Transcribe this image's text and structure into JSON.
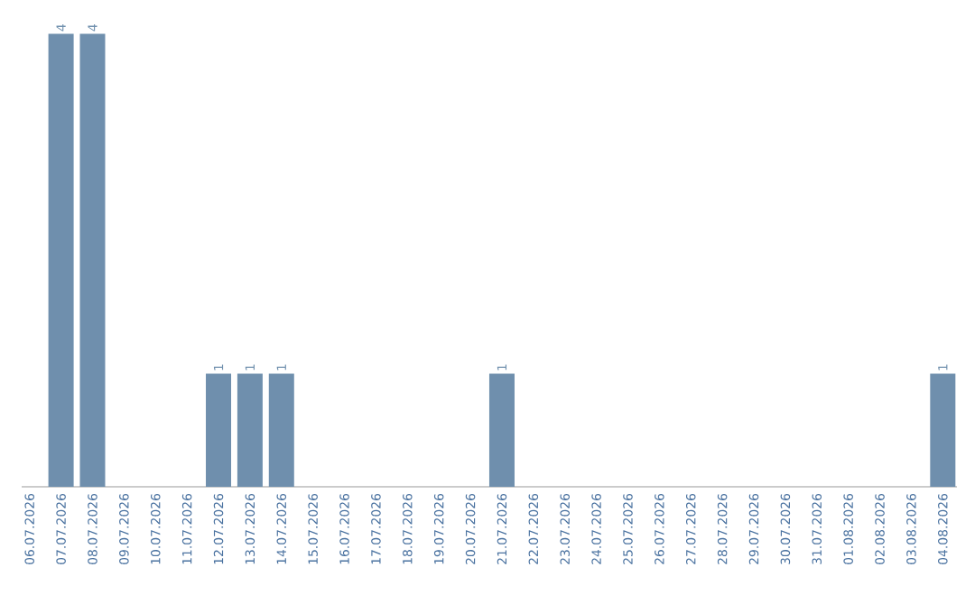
{
  "chart_data": {
    "type": "bar",
    "categories": [
      "06.07.2026",
      "07.07.2026",
      "08.07.2026",
      "09.07.2026",
      "10.07.2026",
      "11.07.2026",
      "12.07.2026",
      "13.07.2026",
      "14.07.2026",
      "15.07.2026",
      "16.07.2026",
      "17.07.2026",
      "18.07.2026",
      "19.07.2026",
      "20.07.2026",
      "21.07.2026",
      "22.07.2026",
      "23.07.2026",
      "24.07.2026",
      "25.07.2026",
      "26.07.2026",
      "27.07.2026",
      "28.07.2026",
      "29.07.2026",
      "30.07.2026",
      "31.07.2026",
      "01.08.2026",
      "02.08.2026",
      "03.08.2026",
      "04.08.2026"
    ],
    "values": [
      0,
      4,
      4,
      0,
      0,
      0,
      1,
      1,
      1,
      0,
      0,
      0,
      0,
      0,
      0,
      1,
      0,
      0,
      0,
      0,
      0,
      0,
      0,
      0,
      0,
      0,
      0,
      0,
      0,
      1
    ],
    "color": "#6f8fad",
    "value_labels": [
      null,
      "4",
      "4",
      null,
      null,
      null,
      "1",
      "1",
      "1",
      null,
      null,
      null,
      null,
      null,
      null,
      "1",
      null,
      null,
      null,
      null,
      null,
      null,
      null,
      null,
      null,
      null,
      null,
      null,
      null,
      "1"
    ]
  }
}
